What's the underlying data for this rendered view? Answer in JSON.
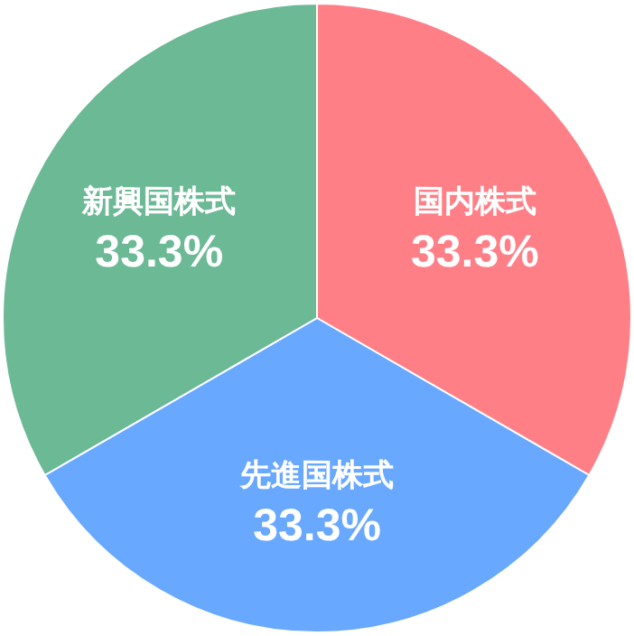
{
  "chart_data": {
    "type": "pie",
    "categories": [
      "国内株式",
      "先進国株式",
      "新興国株式"
    ],
    "values": [
      33.3,
      33.3,
      33.3
    ],
    "colors": [
      "#ff7f87",
      "#68a8ff",
      "#6cb996"
    ],
    "value_labels": [
      "33.3%",
      "33.3%",
      "33.3%"
    ]
  }
}
